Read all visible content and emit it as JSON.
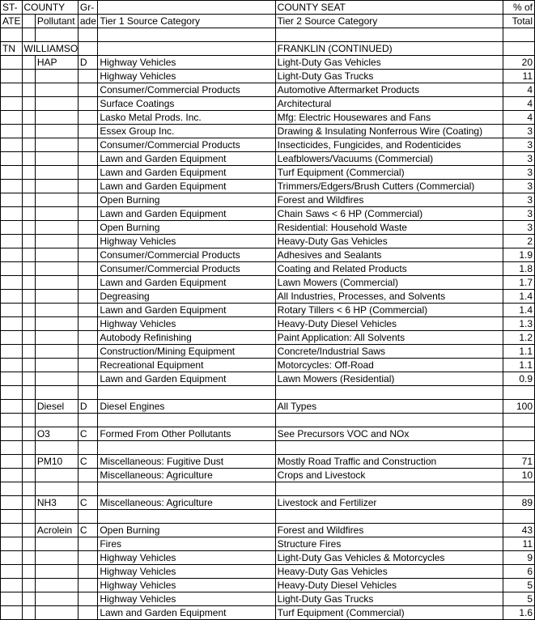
{
  "header": {
    "r1": {
      "state": "ST-",
      "county": "COUNTY",
      "grade": "Gr-",
      "tier1": "",
      "countyseat": "COUNTY SEAT",
      "pct": "% of"
    },
    "r2": {
      "state": "ATE",
      "pollutant": "Pollutant",
      "grade": "ade",
      "tier1": "Tier 1 Source Category",
      "tier2": "Tier 2 Source Category",
      "pct": "Total"
    }
  },
  "state": "TN",
  "county": "WILLIAMSON",
  "countyseat_cont": "FRANKLIN (CONTINUED)",
  "groups": [
    {
      "pollutant": "HAP",
      "grade": "D",
      "rows": [
        {
          "t1": "Highway Vehicles",
          "t2": "Light-Duty Gas Vehicles",
          "p": "20"
        },
        {
          "t1": "Highway Vehicles",
          "t2": "Light-Duty Gas Trucks",
          "p": "11"
        },
        {
          "t1": "Consumer/Commercial Products",
          "t2": "Automotive Aftermarket Products",
          "p": "4"
        },
        {
          "t1": "Surface Coatings",
          "t2": "Architectural",
          "p": "4"
        },
        {
          "t1": "Lasko Metal Prods. Inc.",
          "t2": "Mfg: Electric Housewares and Fans",
          "p": "4"
        },
        {
          "t1": "Essex Group Inc.",
          "t2": "Drawing & Insulating Nonferrous Wire (Coating)",
          "p": "3"
        },
        {
          "t1": "Consumer/Commercial Products",
          "t2": "Insecticides, Fungicides, and Rodenticides",
          "p": "3"
        },
        {
          "t1": "Lawn and Garden Equipment",
          "t2": "Leafblowers/Vacuums (Commercial)",
          "p": "3"
        },
        {
          "t1": "Lawn and Garden Equipment",
          "t2": "Turf Equipment (Commercial)",
          "p": "3"
        },
        {
          "t1": "Lawn and Garden Equipment",
          "t2": "Trimmers/Edgers/Brush Cutters (Commercial)",
          "p": "3"
        },
        {
          "t1": "Open Burning",
          "t2": "Forest and Wildfires",
          "p": "3"
        },
        {
          "t1": "Lawn and Garden Equipment",
          "t2": "Chain Saws < 6 HP (Commercial)",
          "p": "3"
        },
        {
          "t1": "Open Burning",
          "t2": "Residential: Household Waste",
          "p": "3"
        },
        {
          "t1": "Highway Vehicles",
          "t2": "Heavy-Duty Gas Vehicles",
          "p": "2"
        },
        {
          "t1": "Consumer/Commercial Products",
          "t2": "Adhesives and Sealants",
          "p": "1.9"
        },
        {
          "t1": "Consumer/Commercial Products",
          "t2": "Coating and Related Products",
          "p": "1.8"
        },
        {
          "t1": "Lawn and Garden Equipment",
          "t2": "Lawn Mowers (Commercial)",
          "p": "1.7"
        },
        {
          "t1": "Degreasing",
          "t2": "All Industries, Processes, and Solvents",
          "p": "1.4"
        },
        {
          "t1": "Lawn and Garden Equipment",
          "t2": "Rotary Tillers < 6 HP (Commercial)",
          "p": "1.4"
        },
        {
          "t1": "Highway Vehicles",
          "t2": "Heavy-Duty Diesel Vehicles",
          "p": "1.3"
        },
        {
          "t1": "Autobody Refinishing",
          "t2": "Paint Application: All Solvents",
          "p": "1.2"
        },
        {
          "t1": "Construction/Mining Equipment",
          "t2": "Concrete/Industrial Saws",
          "p": "1.1"
        },
        {
          "t1": "Recreational Equipment",
          "t2": "Motorcycles: Off-Road",
          "p": "1.1"
        },
        {
          "t1": "Lawn and Garden Equipment",
          "t2": "Lawn Mowers (Residential)",
          "p": "0.9"
        }
      ]
    },
    {
      "pollutant": "Diesel",
      "grade": "D",
      "rows": [
        {
          "t1": "Diesel Engines",
          "t2": "All Types",
          "p": "100"
        }
      ]
    },
    {
      "pollutant": "O3",
      "grade": "C",
      "rows": [
        {
          "t1": "Formed From Other Pollutants",
          "t2": "See Precursors VOC and NOx",
          "p": ""
        }
      ]
    },
    {
      "pollutant": "PM10",
      "grade": "C",
      "rows": [
        {
          "t1": "Miscellaneous: Fugitive Dust",
          "t2": "Mostly Road Traffic and Construction",
          "p": "71"
        },
        {
          "t1": "Miscellaneous: Agriculture",
          "t2": "Crops and Livestock",
          "p": "10"
        }
      ]
    },
    {
      "pollutant": "NH3",
      "grade": "C",
      "rows": [
        {
          "t1": "Miscellaneous: Agriculture",
          "t2": "Livestock and Fertilizer",
          "p": "89"
        }
      ]
    },
    {
      "pollutant": "Acrolein",
      "grade": "C",
      "rows": [
        {
          "t1": "Open Burning",
          "t2": "Forest and Wildfires",
          "p": "43"
        },
        {
          "t1": "Fires",
          "t2": "Structure Fires",
          "p": "11"
        },
        {
          "t1": "Highway Vehicles",
          "t2": "Light-Duty Gas Vehicles & Motorcycles",
          "p": "9"
        },
        {
          "t1": "Highway Vehicles",
          "t2": "Heavy-Duty Gas Vehicles",
          "p": "6"
        },
        {
          "t1": "Highway Vehicles",
          "t2": "Heavy-Duty Diesel Vehicles",
          "p": "5"
        },
        {
          "t1": "Highway Vehicles",
          "t2": "Light-Duty Gas Trucks",
          "p": "5"
        },
        {
          "t1": "Lawn and Garden Equipment",
          "t2": "Turf Equipment (Commercial)",
          "p": "1.6"
        }
      ]
    }
  ]
}
